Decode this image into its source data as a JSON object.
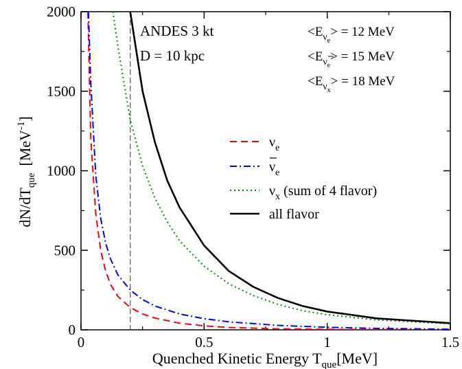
{
  "chart_data": {
    "type": "line",
    "title": "",
    "xlabel": "Quenched Kinetic Energy T",
    "xlabel_sub": "que",
    "xlabel_unit": "[MeV]",
    "ylabel": "dN/dT",
    "ylabel_sub": "que",
    "ylabel_unit_pre": "[MeV",
    "ylabel_unit_sup": "-1",
    "ylabel_unit_post": "]",
    "xlim": [
      0,
      1.5
    ],
    "ylim": [
      0,
      2000
    ],
    "xticks": [
      0,
      0.5,
      1,
      1.5
    ],
    "xtick_labels": [
      "0",
      "0.5",
      "1",
      "1.5"
    ],
    "yticks": [
      0,
      500,
      1000,
      1500,
      2000
    ],
    "ytick_labels": [
      "0",
      "500",
      "1000",
      "1500",
      "2000"
    ],
    "grid": false,
    "threshold_line": {
      "x": 0.2,
      "style": "dashed",
      "color": "#555555"
    },
    "annotations": {
      "detector": "ANDES 3 kt",
      "distance": "D = 10 kpc",
      "energies": [
        {
          "prefix": "<E",
          "sub": "ν",
          "subsub": "e",
          "bar": false,
          "value": "> = 12 MeV"
        },
        {
          "prefix": "<E",
          "sub": "ν",
          "subsub": "e",
          "bar": true,
          "value": "> = 15 MeV"
        },
        {
          "prefix": "<E",
          "sub": "ν",
          "subsub": "x",
          "bar": false,
          "value": "> = 18 MeV"
        }
      ]
    },
    "legend_placement": "center-right",
    "series": [
      {
        "name": "ν",
        "name_sub": "e",
        "name_suffix": "",
        "bar": false,
        "color": "#ff0000",
        "style": "dashed",
        "x": [
          0.028,
          0.04,
          0.06,
          0.08,
          0.1,
          0.12,
          0.15,
          0.2,
          0.25,
          0.3,
          0.4,
          0.5,
          0.6,
          0.8,
          1.0,
          1.2,
          1.5
        ],
        "y": [
          2000,
          1200,
          730,
          500,
          370,
          285,
          210,
          140,
          100,
          74,
          42,
          25,
          15,
          6,
          3,
          1.5,
          0.5
        ]
      },
      {
        "name": "ν",
        "name_sub": "e",
        "name_suffix": "",
        "bar": true,
        "color": "#0000ff",
        "style": "dashdot",
        "x": [
          0.03,
          0.04,
          0.06,
          0.08,
          0.1,
          0.12,
          0.15,
          0.2,
          0.25,
          0.3,
          0.4,
          0.5,
          0.6,
          0.8,
          1.0,
          1.2,
          1.5
        ],
        "y": [
          2000,
          1550,
          970,
          700,
          545,
          445,
          345,
          250,
          190,
          150,
          100,
          70,
          50,
          28,
          16,
          9,
          4
        ]
      },
      {
        "name": "ν",
        "name_sub": "x",
        "name_suffix": " (sum of 4 flavor)",
        "bar": false,
        "color": "#008800",
        "style": "dotted",
        "x": [
          0.13,
          0.15,
          0.2,
          0.25,
          0.3,
          0.35,
          0.4,
          0.5,
          0.6,
          0.7,
          0.8,
          0.9,
          1.0,
          1.2,
          1.5
        ],
        "y": [
          2000,
          1780,
          1320,
          1030,
          830,
          680,
          560,
          400,
          290,
          215,
          160,
          120,
          95,
          62,
          38
        ]
      },
      {
        "name": "all flavor",
        "name_sub": "",
        "name_suffix": "",
        "bar": false,
        "color": "#000000",
        "style": "solid",
        "x": [
          0.2,
          0.22,
          0.25,
          0.3,
          0.35,
          0.4,
          0.5,
          0.6,
          0.7,
          0.8,
          0.9,
          1.0,
          1.2,
          1.5
        ],
        "y": [
          2000,
          1800,
          1500,
          1180,
          940,
          770,
          530,
          370,
          270,
          200,
          150,
          115,
          72,
          42
        ]
      }
    ]
  }
}
